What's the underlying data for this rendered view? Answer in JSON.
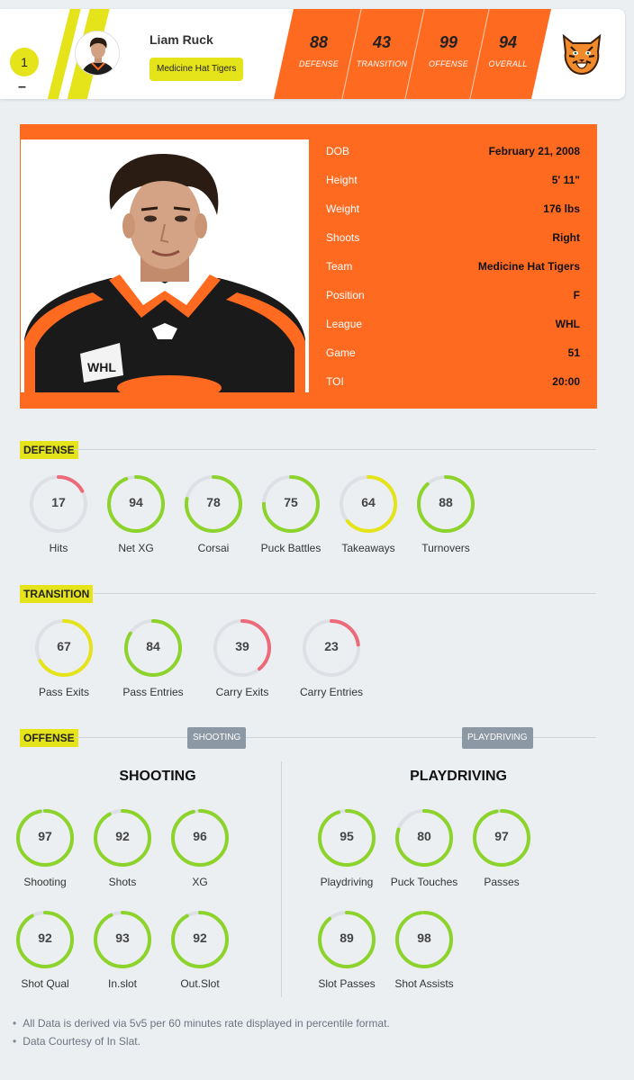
{
  "header": {
    "rank": "1",
    "rank_change": "–",
    "player_name": "Liam Ruck",
    "team": "Medicine Hat Tigers",
    "ratings": [
      {
        "value": "88",
        "label": "DEFENSE"
      },
      {
        "value": "43",
        "label": "TRANSITION"
      },
      {
        "value": "99",
        "label": "OFFENSE"
      },
      {
        "value": "94",
        "label": "OVERALL"
      }
    ],
    "logo_icon": "tiger-logo-icon"
  },
  "profile": {
    "fields": [
      {
        "key": "DOB",
        "value": "February 21, 2008"
      },
      {
        "key": "Height",
        "value": "5' 11\""
      },
      {
        "key": "Weight",
        "value": "176 lbs"
      },
      {
        "key": "Shoots",
        "value": "Right"
      },
      {
        "key": "Team",
        "value": "Medicine Hat Tigers"
      },
      {
        "key": "Position",
        "value": "F"
      },
      {
        "key": "League",
        "value": "WHL"
      },
      {
        "key": "Game",
        "value": "51"
      },
      {
        "key": "TOI",
        "value": "20:00"
      }
    ]
  },
  "defense": {
    "title": "DEFENSE",
    "stats": [
      {
        "label": "Hits",
        "value": "17"
      },
      {
        "label": "Net XG",
        "value": "94"
      },
      {
        "label": "Corsai",
        "value": "78"
      },
      {
        "label": "Puck Battles",
        "value": "75"
      },
      {
        "label": "Takeaways",
        "value": "64"
      },
      {
        "label": "Turnovers",
        "value": "88"
      }
    ]
  },
  "transition": {
    "title": "TRANSITION",
    "stats": [
      {
        "label": "Pass Exits",
        "value": "67"
      },
      {
        "label": "Pass Entries",
        "value": "84"
      },
      {
        "label": "Carry Exits",
        "value": "39"
      },
      {
        "label": "Carry Entries",
        "value": "23"
      }
    ]
  },
  "offense": {
    "title": "OFFENSE",
    "toggle_shooting": "SHOOTING",
    "toggle_playdriving": "PLAYDRIVING",
    "shooting_title": "SHOOTING",
    "playdriving_title": "PLAYDRIVING",
    "shooting": [
      {
        "label": "Shooting",
        "value": "97"
      },
      {
        "label": "Shots",
        "value": "92"
      },
      {
        "label": "XG",
        "value": "96"
      },
      {
        "label": "Shot Qual",
        "value": "92"
      },
      {
        "label": "In.slot",
        "value": "93"
      },
      {
        "label": "Out.Slot",
        "value": "92"
      }
    ],
    "playdriving": [
      {
        "label": "Playdriving",
        "value": "95"
      },
      {
        "label": "Puck Touches",
        "value": "80"
      },
      {
        "label": "Passes",
        "value": "97"
      },
      {
        "label": "Slot Passes",
        "value": "89"
      },
      {
        "label": "Shot Assists",
        "value": "98"
      }
    ]
  },
  "notes": [
    "All Data is derived via 5v5 per 60 minutes rate displayed in percentile format.",
    "Data Courtesy of In Slat."
  ],
  "colors": {
    "accent_orange": "#ff6a21",
    "accent_yellow": "#e5e319",
    "ring_high": "#8cd32b",
    "ring_mid": "#e5e319",
    "ring_low": "#ec6a7a",
    "ring_track": "#dde1e5"
  }
}
